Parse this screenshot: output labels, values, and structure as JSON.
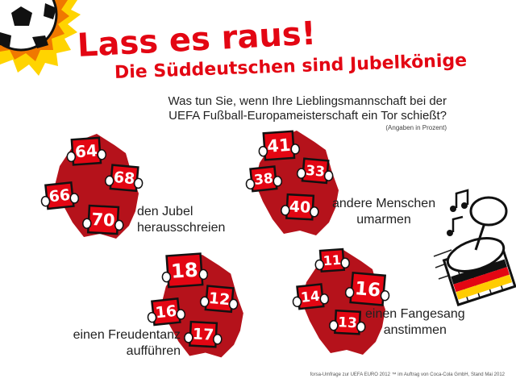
{
  "header": {
    "title": "Lass es raus!",
    "subtitle": "Die Süddeutschen sind Jubelkönige",
    "question_line1": "Was tun Sie, wenn Ihre Lieblingsmannschaft bei der",
    "question_line2": "UEFA Fußball-Europameisterschaft ein Tor schießt?",
    "unit_note": "(Angaben in Prozent)"
  },
  "footer": {
    "source": "forsa-Umfrage zur UEFA EURO 2012 ™ im Auftrag von Coca-Cola GmbH, Stand Mai 2012"
  },
  "colors": {
    "accent": "#e30613",
    "map": "#b5121b",
    "sign_border": "#111111"
  },
  "icons": [
    "soccer-ball-icon",
    "drum-icon",
    "music-notes-icon",
    "germany-map-icon",
    "cartoon-glove-icon"
  ],
  "chart_data": {
    "type": "table",
    "title": "Lass es raus!",
    "subtitle": "Die Süddeutschen sind Jubelkönige",
    "unit": "Prozent",
    "categories": [
      {
        "label_line1": "den Jubel",
        "label_line2": "herausschreien",
        "values": [
          64,
          68,
          66,
          70
        ]
      },
      {
        "label_line1": "andere Menschen",
        "label_line2": "umarmen",
        "values": [
          41,
          33,
          38,
          40
        ]
      },
      {
        "label_line1": "einen Freudentanz",
        "label_line2": "aufführen",
        "values": [
          18,
          12,
          16,
          17
        ]
      },
      {
        "label_line1": "einen Fangesang",
        "label_line2": "anstimmen",
        "values": [
          11,
          16,
          14,
          13
        ]
      }
    ]
  }
}
